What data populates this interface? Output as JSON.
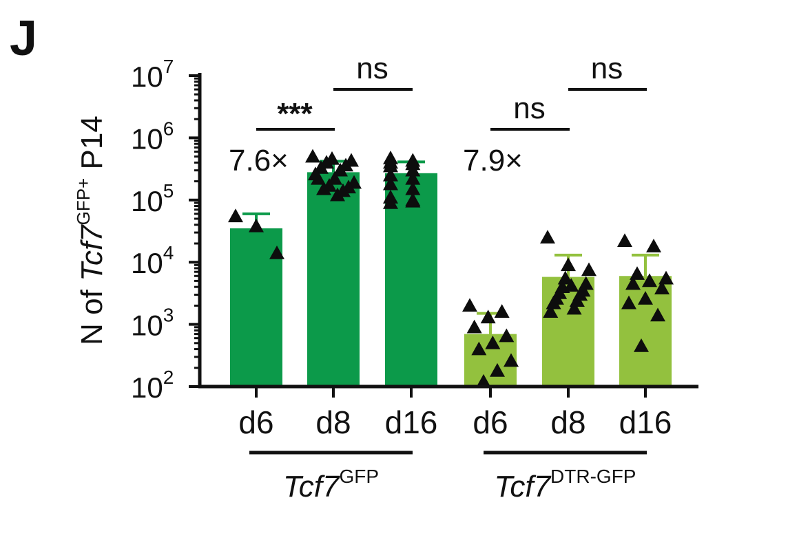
{
  "panel_label": "J",
  "chart_data": {
    "type": "bar",
    "scale": "log10",
    "ylim": [
      100,
      10000000
    ],
    "ylabel": {
      "prefix": "N of ",
      "gene": "Tcf7",
      "superscript": "GFP+",
      "suffix": " P14"
    },
    "yticks": [
      {
        "value": 100,
        "base": "10",
        "exp": "2"
      },
      {
        "value": 1000,
        "base": "10",
        "exp": "3"
      },
      {
        "value": 10000,
        "base": "10",
        "exp": "4"
      },
      {
        "value": 100000,
        "base": "10",
        "exp": "5"
      },
      {
        "value": 1000000,
        "base": "10",
        "exp": "6"
      },
      {
        "value": 10000000,
        "base": "10",
        "exp": "7"
      }
    ],
    "colors": {
      "Tcf7GFP": "#0c9a4a",
      "Tcf7DTR-GFP": "#93c13e",
      "points": "#0d0d0d"
    },
    "groups": [
      {
        "gene": "Tcf7",
        "superscript": "GFP",
        "color_key": "Tcf7GFP",
        "bars": [
          0,
          1,
          2
        ]
      },
      {
        "gene": "Tcf7",
        "superscript": "DTR-GFP",
        "color_key": "Tcf7DTR-GFP",
        "bars": [
          3,
          4,
          5
        ]
      }
    ],
    "bars": [
      {
        "label": "d6",
        "group": 0,
        "value": 35000,
        "error_upper": 60000,
        "points": [
          55000,
          38000,
          14000
        ]
      },
      {
        "label": "d8",
        "group": 0,
        "value": 280000,
        "error_upper": 420000,
        "points": [
          500000,
          460000,
          430000,
          400000,
          360000,
          330000,
          300000,
          260000,
          220000,
          190000,
          170000,
          160000,
          150000,
          140000,
          220000,
          120000
        ]
      },
      {
        "label": "d16",
        "group": 0,
        "value": 270000,
        "error_upper": 410000,
        "points": [
          470000,
          430000,
          400000,
          380000,
          350000,
          300000,
          250000,
          220000,
          180000,
          150000,
          110000,
          100000,
          90000,
          95000
        ]
      },
      {
        "label": "d6",
        "group": 1,
        "value": 700,
        "error_upper": 1500,
        "points": [
          2000,
          1600,
          1300,
          900,
          650,
          500,
          400,
          260,
          180,
          120
        ]
      },
      {
        "label": "d8",
        "group": 1,
        "value": 5800,
        "error_upper": 13000,
        "points": [
          25000,
          9000,
          7500,
          5500,
          4500,
          4000,
          3500,
          3200,
          3000,
          2600,
          2400,
          2200,
          1800,
          1600,
          4200
        ]
      },
      {
        "label": "d16",
        "group": 1,
        "value": 6000,
        "error_upper": 13000,
        "points": [
          22000,
          18000,
          6500,
          5500,
          5000,
          4500,
          3800,
          2600,
          2200,
          1400,
          450
        ]
      }
    ],
    "comparisons": [
      {
        "from": 0,
        "to": 1,
        "label": "***",
        "bold": true,
        "y": 1000000
      },
      {
        "from": 1,
        "to": 2,
        "label": "ns",
        "bold": false,
        "y": 8000000
      },
      {
        "from": 3,
        "to": 4,
        "label": "ns",
        "bold": false,
        "y": 1000000
      },
      {
        "from": 4,
        "to": 5,
        "label": "ns",
        "bold": false,
        "y": 8000000
      }
    ],
    "fold_changes": [
      {
        "group": 0,
        "label": "7.6×"
      },
      {
        "group": 1,
        "label": "7.9×"
      }
    ]
  }
}
